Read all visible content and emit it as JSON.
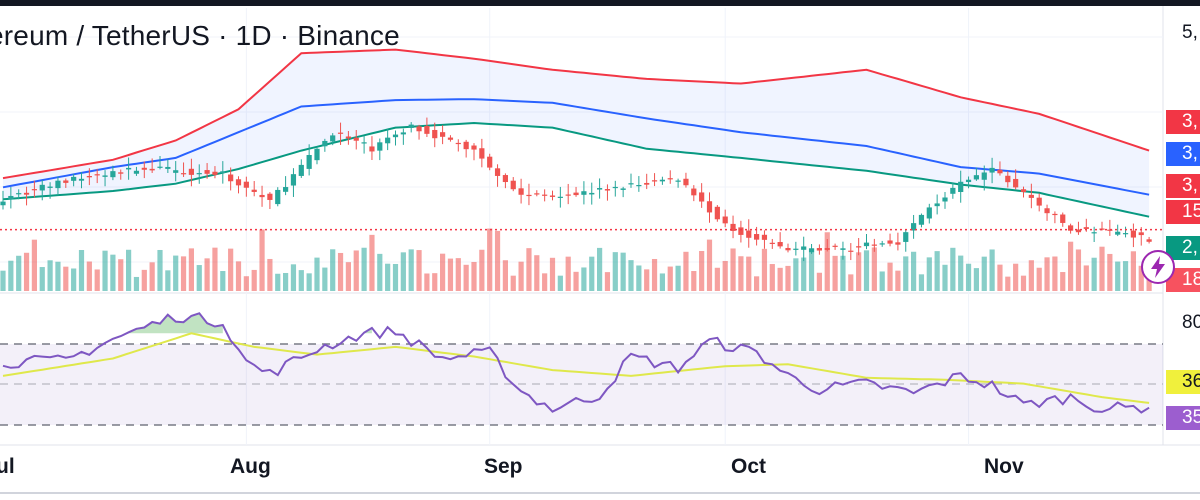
{
  "header": {
    "title": "ereum / TetherUS · 1D · Binance"
  },
  "price_axis": {
    "top_label": "5,",
    "tags": [
      {
        "text": "3,",
        "color": "#f23645"
      },
      {
        "text": "3,",
        "color": "#2962ff"
      },
      {
        "text": "3,",
        "color": "#f23645"
      },
      {
        "text": "15",
        "color": "#f23645"
      },
      {
        "text": "2,",
        "color": "#089981"
      },
      {
        "text": "18",
        "color": "#f7525f"
      }
    ]
  },
  "rsi_axis": {
    "top_label": "80",
    "tags": [
      {
        "text": "36",
        "color": "#f0f03c"
      },
      {
        "text": "35",
        "color": "#9c5ecf"
      }
    ]
  },
  "x_axis": {
    "months": [
      "ul",
      "Aug",
      "Sep",
      "Oct",
      "Nov"
    ]
  },
  "icons": {
    "bolt": "lightning-bolt-icon"
  },
  "colors": {
    "up": "#26a69a",
    "down": "#ef5350",
    "upper_band": "#f23645",
    "basis": "#2962ff",
    "lower_band": "#089981",
    "rsi": "#7e57c2",
    "rsi_ma": "#dfe84b",
    "current_price": "#f23645"
  },
  "chart_data": [
    {
      "type": "candlestick",
      "title": "ereum / TetherUS · 1D · Binance",
      "overlays": [
        "Bollinger Bands (upper, basis, lower)",
        "volume"
      ],
      "x_range": [
        "2024-07-01",
        "2024-11-24"
      ],
      "x_ticks": [
        "ul",
        "Aug",
        "Sep",
        "Oct",
        "Nov"
      ],
      "price_path": [
        [
          0,
          3180
        ],
        [
          8,
          3370
        ],
        [
          18,
          3510
        ],
        [
          28,
          3440
        ],
        [
          34,
          3150
        ],
        [
          42,
          3900
        ],
        [
          47,
          3720
        ],
        [
          52,
          3970
        ],
        [
          60,
          3700
        ],
        [
          66,
          3210
        ],
        [
          74,
          3240
        ],
        [
          86,
          3400
        ],
        [
          92,
          2880
        ],
        [
          100,
          2620
        ],
        [
          108,
          2640
        ],
        [
          114,
          2710
        ],
        [
          118,
          3080
        ],
        [
          122,
          3330
        ],
        [
          126,
          3500
        ],
        [
          130,
          3240
        ],
        [
          136,
          2840
        ],
        [
          143,
          2810
        ],
        [
          146,
          2740
        ]
      ],
      "upper_band_path": [
        [
          0,
          3400
        ],
        [
          14,
          3600
        ],
        [
          22,
          3810
        ],
        [
          30,
          4150
        ],
        [
          38,
          4760
        ],
        [
          50,
          4800
        ],
        [
          60,
          4700
        ],
        [
          70,
          4580
        ],
        [
          82,
          4480
        ],
        [
          94,
          4430
        ],
        [
          110,
          4580
        ],
        [
          122,
          4280
        ],
        [
          132,
          4100
        ],
        [
          146,
          3700
        ]
      ],
      "basis_path": [
        [
          0,
          3300
        ],
        [
          14,
          3520
        ],
        [
          22,
          3620
        ],
        [
          30,
          3900
        ],
        [
          38,
          4180
        ],
        [
          50,
          4250
        ],
        [
          60,
          4260
        ],
        [
          70,
          4220
        ],
        [
          82,
          4050
        ],
        [
          94,
          3900
        ],
        [
          110,
          3750
        ],
        [
          122,
          3520
        ],
        [
          132,
          3450
        ],
        [
          146,
          3220
        ]
      ],
      "lower_band_path": [
        [
          0,
          3170
        ],
        [
          14,
          3260
        ],
        [
          22,
          3340
        ],
        [
          30,
          3500
        ],
        [
          38,
          3700
        ],
        [
          50,
          3950
        ],
        [
          60,
          4000
        ],
        [
          70,
          3950
        ],
        [
          82,
          3720
        ],
        [
          94,
          3620
        ],
        [
          110,
          3480
        ],
        [
          122,
          3330
        ],
        [
          132,
          3240
        ],
        [
          146,
          2980
        ]
      ],
      "current_price_line": 2840
    },
    {
      "type": "line",
      "name": "RSI",
      "ylim": [
        20,
        80
      ],
      "levels": [
        70,
        50,
        30
      ],
      "y_tick": "80",
      "rsi_path": [
        [
          0,
          55
        ],
        [
          8,
          56
        ],
        [
          14,
          67
        ],
        [
          22,
          79
        ],
        [
          28,
          76
        ],
        [
          31,
          55
        ],
        [
          34,
          49
        ],
        [
          40,
          62
        ],
        [
          46,
          70
        ],
        [
          50,
          71
        ],
        [
          56,
          57
        ],
        [
          62,
          60
        ],
        [
          66,
          40
        ],
        [
          70,
          31
        ],
        [
          76,
          38
        ],
        [
          80,
          58
        ],
        [
          86,
          52
        ],
        [
          90,
          66
        ],
        [
          96,
          60
        ],
        [
          100,
          48
        ],
        [
          104,
          41
        ],
        [
          110,
          44
        ],
        [
          116,
          39
        ],
        [
          122,
          48
        ],
        [
          126,
          43
        ],
        [
          130,
          33
        ],
        [
          136,
          37
        ],
        [
          140,
          31
        ],
        [
          146,
          32
        ]
      ],
      "rsi_ma_path": [
        [
          0,
          48
        ],
        [
          14,
          57
        ],
        [
          24,
          70
        ],
        [
          32,
          63
        ],
        [
          40,
          59
        ],
        [
          50,
          63
        ],
        [
          60,
          58
        ],
        [
          70,
          51
        ],
        [
          80,
          48
        ],
        [
          92,
          53
        ],
        [
          100,
          54
        ],
        [
          110,
          47
        ],
        [
          120,
          46
        ],
        [
          130,
          44
        ],
        [
          140,
          37
        ],
        [
          146,
          34
        ]
      ]
    }
  ]
}
